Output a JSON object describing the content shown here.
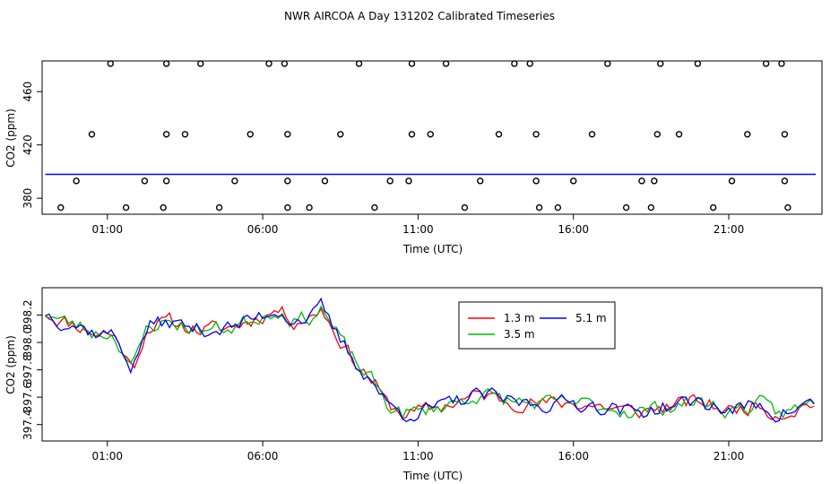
{
  "page": {
    "title": "NWR AIRCOA A  Day 131202  Calibrated Timeseries"
  },
  "chart_data": [
    {
      "type": "scatter+line",
      "name": "upper-panel",
      "xlabel": "Time (UTC)",
      "ylabel": "CO2 (ppm)",
      "xlim": [
        -1.1,
        24.0
      ],
      "ylim": [
        368,
        483
      ],
      "xticks": [
        1,
        6,
        11,
        16,
        21
      ],
      "xtick_labels": [
        "01:00",
        "06:00",
        "11:00",
        "16:00",
        "21:00"
      ],
      "yticks": [
        380,
        420,
        460
      ],
      "ytick_labels": [
        "380",
        "420",
        "460"
      ],
      "line_level": 397.9,
      "line_x": [
        -1.0,
        23.8
      ],
      "line_color": "#0000ff",
      "points": [
        [
          -0.5,
          373
        ],
        [
          0.0,
          393
        ],
        [
          0.5,
          428
        ],
        [
          1.1,
          481
        ],
        [
          1.6,
          373
        ],
        [
          2.2,
          393
        ],
        [
          2.8,
          373
        ],
        [
          2.9,
          393
        ],
        [
          2.9,
          428
        ],
        [
          2.9,
          481
        ],
        [
          3.5,
          428
        ],
        [
          4.0,
          481
        ],
        [
          4.6,
          373
        ],
        [
          5.1,
          393
        ],
        [
          5.6,
          428
        ],
        [
          6.2,
          481
        ],
        [
          6.7,
          481
        ],
        [
          6.8,
          428
        ],
        [
          6.8,
          393
        ],
        [
          6.8,
          373
        ],
        [
          7.5,
          373
        ],
        [
          8.0,
          393
        ],
        [
          8.5,
          428
        ],
        [
          9.1,
          481
        ],
        [
          9.6,
          373
        ],
        [
          10.1,
          393
        ],
        [
          10.7,
          393
        ],
        [
          10.8,
          428
        ],
        [
          10.8,
          481
        ],
        [
          11.4,
          428
        ],
        [
          11.9,
          481
        ],
        [
          12.5,
          373
        ],
        [
          13.0,
          393
        ],
        [
          13.6,
          428
        ],
        [
          14.1,
          481
        ],
        [
          14.6,
          481
        ],
        [
          14.8,
          428
        ],
        [
          14.8,
          393
        ],
        [
          14.9,
          373
        ],
        [
          15.5,
          373
        ],
        [
          16.0,
          393
        ],
        [
          16.6,
          428
        ],
        [
          17.1,
          481
        ],
        [
          17.7,
          373
        ],
        [
          18.2,
          393
        ],
        [
          18.5,
          373
        ],
        [
          18.6,
          393
        ],
        [
          18.7,
          428
        ],
        [
          18.8,
          481
        ],
        [
          19.4,
          428
        ],
        [
          20.0,
          481
        ],
        [
          20.5,
          373
        ],
        [
          21.1,
          393
        ],
        [
          21.6,
          428
        ],
        [
          22.2,
          481
        ],
        [
          22.7,
          481
        ],
        [
          22.8,
          428
        ],
        [
          22.8,
          393
        ],
        [
          22.9,
          373
        ]
      ]
    },
    {
      "type": "line",
      "name": "lower-panel",
      "xlabel": "Time (UTC)",
      "ylabel": "CO2 (ppm)",
      "xlim": [
        -1.1,
        24.0
      ],
      "ylim": [
        397.28,
        398.4
      ],
      "xticks": [
        1,
        6,
        11,
        16,
        21
      ],
      "xtick_labels": [
        "01:00",
        "06:00",
        "11:00",
        "16:00",
        "21:00"
      ],
      "yticks": [
        397.4,
        397.6,
        397.8,
        398.0,
        398.2
      ],
      "ytick_labels": [
        "397.4",
        "397.6",
        "397.8",
        "398.0",
        "398.2"
      ],
      "legend_position": "top-right",
      "x_start": -1.0,
      "x_step": 0.125,
      "anchors_x": [
        -1.0,
        -0.5,
        0.0,
        0.6,
        1.0,
        1.2,
        1.5,
        1.8,
        2.3,
        3.0,
        4.0,
        5.0,
        6.0,
        6.5,
        7.0,
        7.6,
        7.9,
        8.2,
        9.0,
        9.6,
        10.0,
        10.5,
        11.0,
        12.0,
        13.0,
        14.0,
        15.0,
        16.0,
        17.0,
        18.0,
        19.0,
        20.0,
        21.0,
        22.0,
        22.5,
        23.0,
        23.8
      ],
      "anchors_y": [
        398.22,
        398.16,
        398.13,
        398.07,
        398.07,
        398.05,
        397.95,
        397.8,
        398.12,
        398.15,
        398.09,
        398.11,
        398.2,
        398.24,
        398.16,
        398.19,
        398.26,
        398.12,
        397.85,
        397.7,
        397.55,
        397.48,
        397.49,
        397.55,
        397.62,
        397.57,
        397.55,
        397.56,
        397.53,
        397.49,
        397.53,
        397.57,
        397.5,
        397.55,
        397.48,
        397.5,
        397.57
      ],
      "series": [
        {
          "name": "1.3 m",
          "color": "#ff0000",
          "seed": 11
        },
        {
          "name": "3.5 m",
          "color": "#00bb00",
          "seed": 23
        },
        {
          "name": "5.1 m",
          "color": "#0000ff",
          "seed": 37
        }
      ]
    }
  ]
}
